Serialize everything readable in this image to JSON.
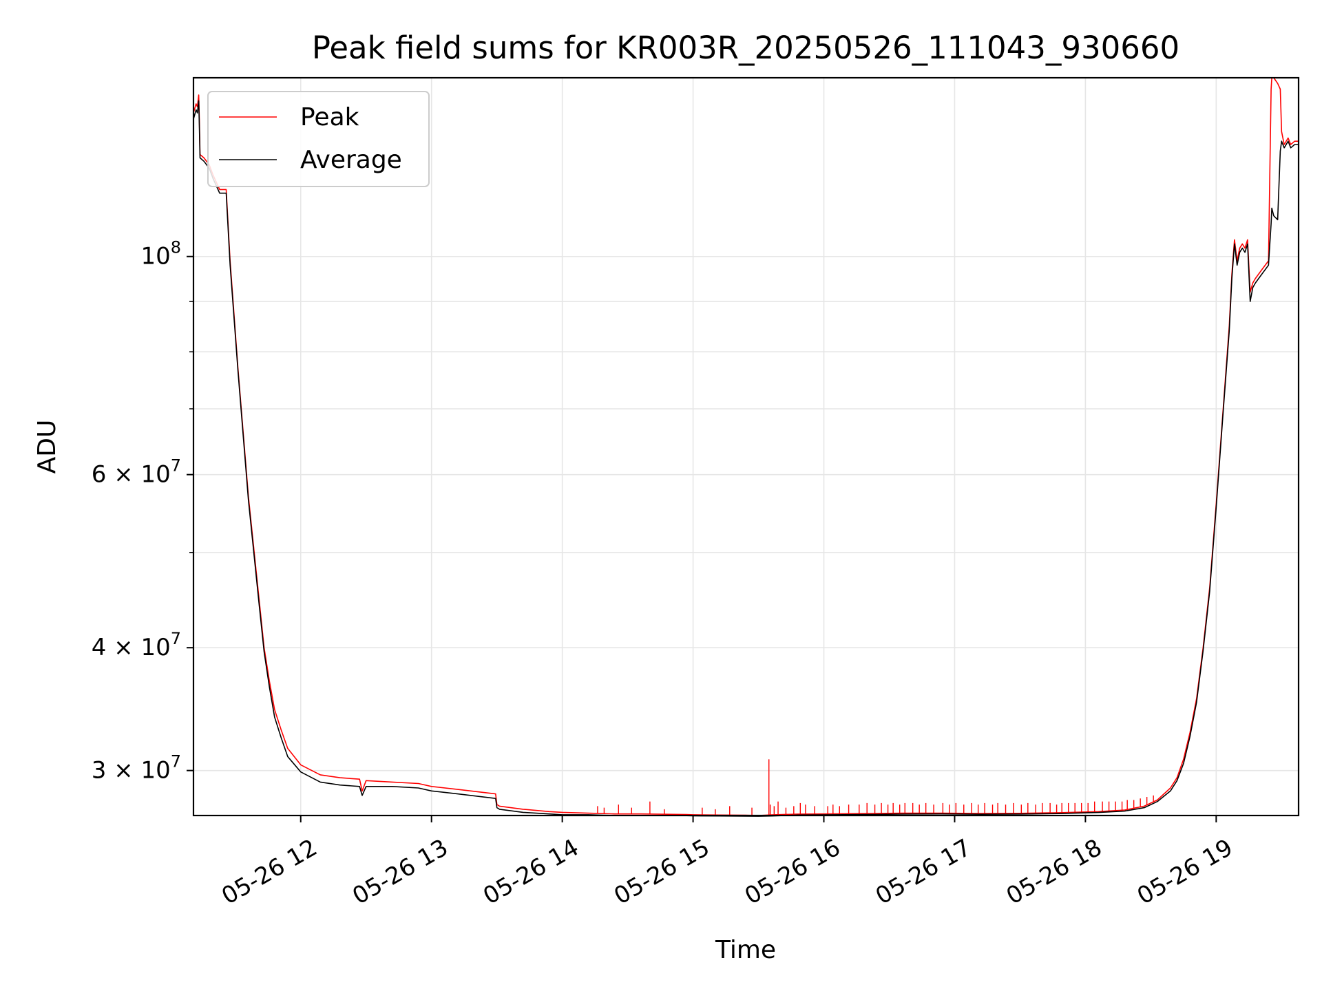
{
  "chart_data": {
    "type": "line",
    "title": "Peak field sums for KR003R_20250526_111043_930660",
    "xlabel": "Time",
    "ylabel": "ADU",
    "yscale": "log",
    "grid": true,
    "legend_position": "top-left",
    "x_unit": "hour of 2025-05-26",
    "xlim": [
      11.18,
      19.63
    ],
    "ylim": [
      27000000,
      152000000
    ],
    "x_ticks": [
      {
        "value": 12,
        "label": "05-26 12"
      },
      {
        "value": 13,
        "label": "05-26 13"
      },
      {
        "value": 14,
        "label": "05-26 14"
      },
      {
        "value": 15,
        "label": "05-26 15"
      },
      {
        "value": 16,
        "label": "05-26 16"
      },
      {
        "value": 17,
        "label": "05-26 17"
      },
      {
        "value": 18,
        "label": "05-26 18"
      },
      {
        "value": 19,
        "label": "05-26 19"
      }
    ],
    "y_ticks": [
      {
        "value": 100000000,
        "mantissa": "",
        "base": "10",
        "exp": "8"
      },
      {
        "value": 60000000,
        "mantissa": "6 × ",
        "base": "10",
        "exp": "7"
      },
      {
        "value": 40000000,
        "mantissa": "4 × ",
        "base": "10",
        "exp": "7"
      },
      {
        "value": 30000000,
        "mantissa": "3 × ",
        "base": "10",
        "exp": "7"
      }
    ],
    "y_minor_ticks": [
      50000000,
      70000000,
      80000000,
      90000000
    ],
    "series": [
      {
        "name": "Peak",
        "color": "#ff0000",
        "x": [
          11.18,
          11.2,
          11.21,
          11.22,
          11.225,
          11.23,
          11.26,
          11.3,
          11.33,
          11.38,
          11.42,
          11.43,
          11.46,
          11.52,
          11.6,
          11.68,
          11.72,
          11.76,
          11.8,
          11.85,
          11.9,
          12.0,
          12.15,
          12.3,
          12.45,
          12.47,
          12.5,
          12.7,
          12.9,
          13.0,
          13.2,
          13.49,
          13.5,
          13.52,
          13.7,
          13.9,
          14.0,
          14.2,
          14.4,
          14.6,
          14.8,
          14.95,
          15.0,
          15.2,
          15.4,
          15.5,
          15.6,
          15.8,
          16.0,
          16.3,
          16.6,
          16.9,
          17.2,
          17.5,
          17.8,
          18.1,
          18.3,
          18.45,
          18.55,
          18.65,
          18.7,
          18.75,
          18.8,
          18.85,
          18.9,
          18.95,
          19.0,
          19.05,
          19.1,
          19.12,
          19.14,
          19.16,
          19.18,
          19.2,
          19.22,
          19.24,
          19.26,
          19.28,
          19.3,
          19.35,
          19.4,
          19.42,
          19.425,
          19.44,
          19.47,
          19.49,
          19.5,
          19.52,
          19.55,
          19.57,
          19.6,
          19.63
        ],
        "y": [
          140000000,
          143000000,
          142000000,
          146000000,
          138000000,
          127000000,
          126000000,
          124000000,
          121000000,
          117000000,
          117000000,
          117000000,
          99000000,
          77000000,
          57000000,
          45000000,
          40000000,
          37000000,
          34600000,
          33000000,
          31600000,
          30400000,
          29700000,
          29500000,
          29400000,
          28600000,
          29300000,
          29200000,
          29100000,
          28900000,
          28700000,
          28400000,
          27700000,
          27600000,
          27400000,
          27250000,
          27200000,
          27150000,
          27100000,
          27100000,
          27080000,
          27060000,
          27050000,
          27030000,
          27020000,
          27000000,
          27040000,
          27090000,
          27100000,
          27120000,
          27150000,
          27150000,
          27130000,
          27140000,
          27180000,
          27250000,
          27350000,
          27600000,
          28000000,
          28800000,
          29500000,
          30800000,
          32800000,
          35500000,
          40000000,
          46000000,
          56000000,
          69000000,
          85000000,
          96000000,
          104000000,
          99000000,
          102000000,
          103000000,
          102000000,
          104000000,
          92000000,
          94000000,
          95000000,
          97000000,
          99000000,
          148000000,
          152000000,
          152000000,
          150000000,
          148000000,
          134000000,
          130000000,
          132000000,
          130000000,
          131000000,
          131000000
        ]
      },
      {
        "name": "Average",
        "color": "#000000",
        "x": [
          11.18,
          11.2,
          11.21,
          11.22,
          11.225,
          11.23,
          11.26,
          11.3,
          11.33,
          11.38,
          11.42,
          11.43,
          11.46,
          11.52,
          11.6,
          11.68,
          11.72,
          11.76,
          11.8,
          11.85,
          11.9,
          12.0,
          12.15,
          12.3,
          12.45,
          12.47,
          12.5,
          12.7,
          12.9,
          13.0,
          13.2,
          13.49,
          13.5,
          13.52,
          13.7,
          13.9,
          14.0,
          14.2,
          14.4,
          14.6,
          14.8,
          14.95,
          15.0,
          15.2,
          15.4,
          15.5,
          15.6,
          15.8,
          16.0,
          16.3,
          16.6,
          16.9,
          17.2,
          17.5,
          17.8,
          18.1,
          18.3,
          18.45,
          18.55,
          18.65,
          18.7,
          18.75,
          18.8,
          18.85,
          18.9,
          18.95,
          19.0,
          19.05,
          19.1,
          19.12,
          19.14,
          19.16,
          19.18,
          19.2,
          19.22,
          19.24,
          19.26,
          19.28,
          19.3,
          19.35,
          19.4,
          19.42,
          19.425,
          19.44,
          19.47,
          19.49,
          19.5,
          19.52,
          19.55,
          19.57,
          19.6,
          19.63
        ],
        "y": [
          138000000,
          141000000,
          140000000,
          144000000,
          136000000,
          126000000,
          125000000,
          123000000,
          120000000,
          116000000,
          116000000,
          116000000,
          98000000,
          76500000,
          56500000,
          44500000,
          39600000,
          36500000,
          34000000,
          32400000,
          31000000,
          29900000,
          29200000,
          29000000,
          28900000,
          28300000,
          28900000,
          28900000,
          28800000,
          28600000,
          28400000,
          28100000,
          27500000,
          27400000,
          27200000,
          27100000,
          27050000,
          27050000,
          27000000,
          27000000,
          27000000,
          26990000,
          26980000,
          26970000,
          26960000,
          26950000,
          26970000,
          27030000,
          27040000,
          27060000,
          27090000,
          27100000,
          27080000,
          27090000,
          27120000,
          27190000,
          27280000,
          27500000,
          27900000,
          28600000,
          29300000,
          30500000,
          32500000,
          35200000,
          39700000,
          45600000,
          55500000,
          68500000,
          84000000,
          95000000,
          103000000,
          98000000,
          101000000,
          102000000,
          101000000,
          103000000,
          90000000,
          93000000,
          94000000,
          96000000,
          98000000,
          108000000,
          112000000,
          110000000,
          109000000,
          128000000,
          131000000,
          129000000,
          131000000,
          129000000,
          130000000,
          130000000
        ]
      }
    ],
    "peak_spikes_x": [
      14.27,
      14.32,
      14.43,
      14.53,
      14.67,
      14.78,
      15.07,
      15.17,
      15.28,
      15.45,
      15.58,
      15.59,
      15.62,
      15.65,
      15.71,
      15.77,
      15.82,
      15.86,
      15.93,
      16.03,
      16.07,
      16.12,
      16.19,
      16.27,
      16.33,
      16.39,
      16.44,
      16.49,
      16.53,
      16.58,
      16.62,
      16.68,
      16.73,
      16.78,
      16.84,
      16.91,
      16.96,
      17.01,
      17.07,
      17.13,
      17.18,
      17.23,
      17.29,
      17.33,
      17.39,
      17.45,
      17.51,
      17.56,
      17.62,
      17.67,
      17.73,
      17.78,
      17.82,
      17.87,
      17.92,
      17.97,
      18.02,
      18.07,
      18.13,
      18.18,
      18.23,
      18.28,
      18.32,
      18.37,
      18.42,
      18.47,
      18.52
    ],
    "peak_spikes_y": [
      27600000,
      27500000,
      27700000,
      27500000,
      27900000,
      27400000,
      27500000,
      27400000,
      27600000,
      27500000,
      30800000,
      27700000,
      27600000,
      27900000,
      27500000,
      27600000,
      27800000,
      27700000,
      27600000,
      27600000,
      27700000,
      27600000,
      27700000,
      27700000,
      27800000,
      27700000,
      27800000,
      27700000,
      27800000,
      27700000,
      27800000,
      27800000,
      27700000,
      27800000,
      27700000,
      27800000,
      27700000,
      27800000,
      27700000,
      27800000,
      27700000,
      27800000,
      27700000,
      27800000,
      27700000,
      27800000,
      27700000,
      27800000,
      27700000,
      27800000,
      27800000,
      27700000,
      27800000,
      27800000,
      27800000,
      27800000,
      27800000,
      27900000,
      27900000,
      27900000,
      27900000,
      27900000,
      28000000,
      28000000,
      28100000,
      28200000,
      28300000
    ]
  }
}
